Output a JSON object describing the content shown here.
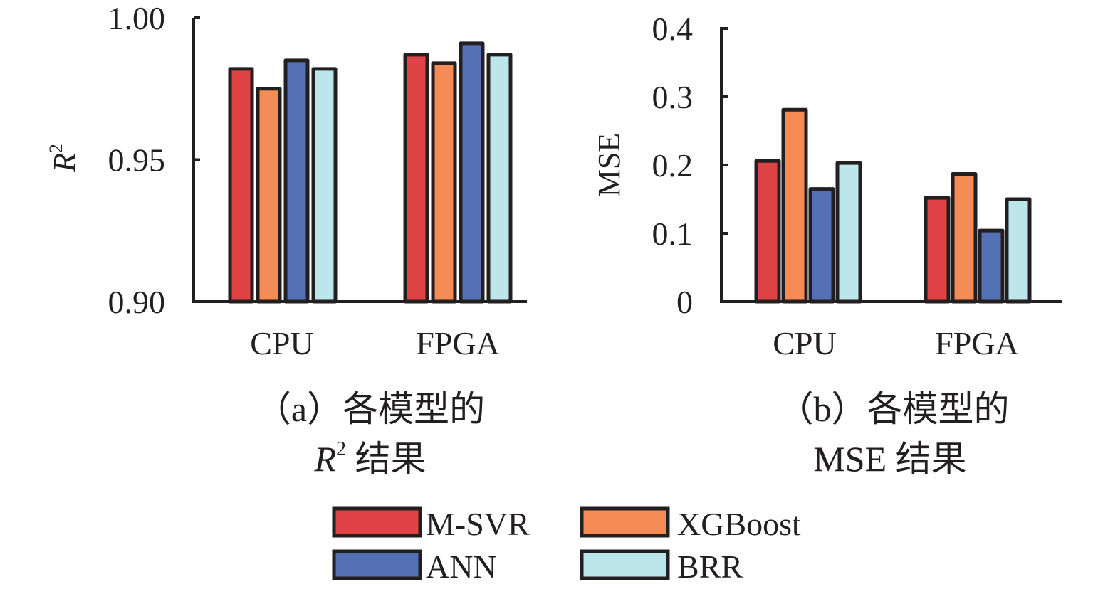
{
  "legend": [
    {
      "name": "M-SVR",
      "color": "#e04345"
    },
    {
      "name": "XGBoost",
      "color": "#f58b55"
    },
    {
      "name": "ANN",
      "color": "#5470b4"
    },
    {
      "name": "BRR",
      "color": "#bde6ea"
    }
  ],
  "chart_data": [
    {
      "type": "bar",
      "panel": "a",
      "title": "",
      "caption_line1": "（a）各模型的",
      "caption_line2_italic": "R",
      "caption_line2_sup": "2",
      "caption_line2_rest": " 结果",
      "xlabel": "",
      "ylabel": "R",
      "ylabel_sup": "2",
      "ylim": [
        0.9,
        1.0
      ],
      "yticks": [
        0.9,
        0.95,
        1.0
      ],
      "ytick_labels": [
        "0.90",
        "0.95",
        "1.00"
      ],
      "categories": [
        "CPU",
        "FPGA"
      ],
      "series": [
        {
          "name": "M-SVR",
          "values": [
            0.982,
            0.987
          ]
        },
        {
          "name": "XGBoost",
          "values": [
            0.975,
            0.984
          ]
        },
        {
          "name": "ANN",
          "values": [
            0.985,
            0.991
          ]
        },
        {
          "name": "BRR",
          "values": [
            0.982,
            0.987
          ]
        }
      ],
      "grid": false
    },
    {
      "type": "bar",
      "panel": "b",
      "title": "",
      "caption_line1": "（b）各模型的",
      "caption_line2": "MSE 结果",
      "xlabel": "",
      "ylabel": "MSE",
      "ylim": [
        0,
        0.4
      ],
      "yticks": [
        0,
        0.1,
        0.2,
        0.3,
        0.4
      ],
      "ytick_labels": [
        "0",
        "0.1",
        "0.2",
        "0.3",
        "0.4"
      ],
      "categories": [
        "CPU",
        "FPGA"
      ],
      "series": [
        {
          "name": "M-SVR",
          "values": [
            0.206,
            0.152
          ]
        },
        {
          "name": "XGBoost",
          "values": [
            0.281,
            0.187
          ]
        },
        {
          "name": "ANN",
          "values": [
            0.165,
            0.104
          ]
        },
        {
          "name": "BRR",
          "values": [
            0.203,
            0.15
          ]
        }
      ],
      "grid": false
    }
  ],
  "legend_placement": "bottom-center"
}
